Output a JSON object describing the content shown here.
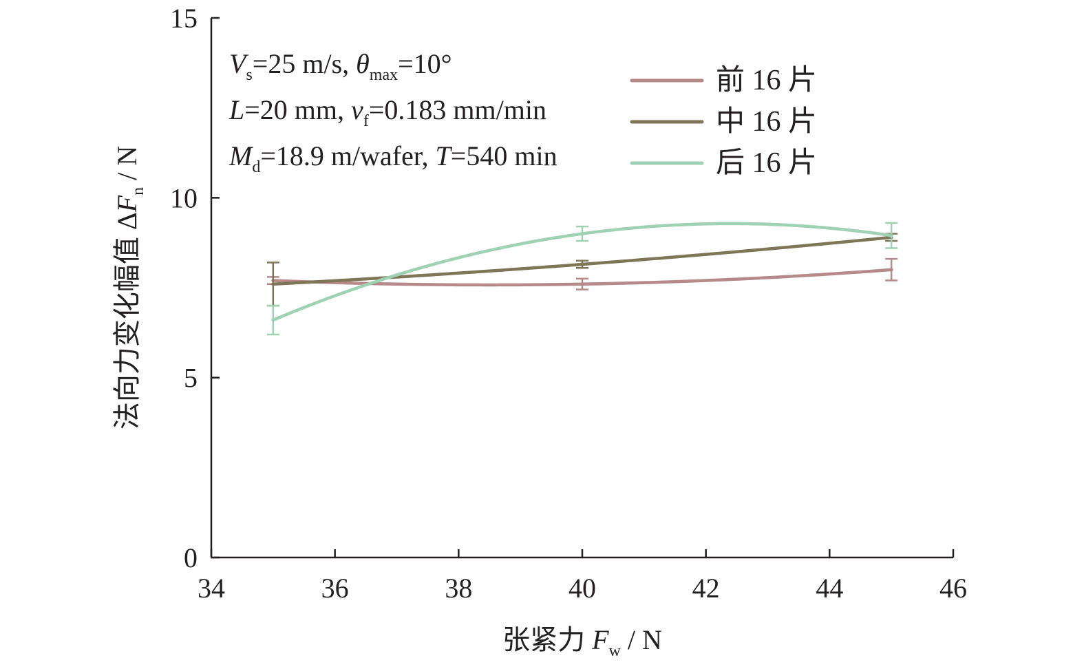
{
  "chart_data": {
    "type": "line",
    "x": [
      35,
      40,
      45
    ],
    "series": [
      {
        "name": "前 16 片",
        "color": "#b58a88",
        "values": [
          7.7,
          7.6,
          8.0
        ],
        "errors": [
          0.1,
          0.15,
          0.3
        ]
      },
      {
        "name": "中 16 片",
        "color": "#7f7557",
        "values": [
          7.6,
          8.15,
          8.9
        ],
        "errors": [
          0.6,
          0.1,
          0.1
        ]
      },
      {
        "name": "后 16 片",
        "color": "#9fd2b4",
        "values": [
          6.6,
          9.0,
          8.95
        ],
        "errors": [
          0.4,
          0.2,
          0.35
        ]
      }
    ],
    "xlim": [
      34,
      46
    ],
    "ylim": [
      0,
      15
    ],
    "xticks": [
      "34",
      "36",
      "38",
      "40",
      "42",
      "44",
      "46"
    ],
    "yticks": [
      "0",
      "5",
      "10",
      "15"
    ],
    "xlabel": {
      "main": "张紧力 ",
      "var": "F",
      "sub": "w",
      "unit": " / N"
    },
    "ylabel": {
      "main": "法向力变化幅值 Δ",
      "var": "F",
      "sub": "n",
      "unit": " / N"
    },
    "annotations": {
      "line1": {
        "v1": "V",
        "s1": "s",
        "t1": "=25 m/s, ",
        "v2": "θ",
        "s2": "max",
        "t2": "=10°"
      },
      "line2": {
        "v1": "L",
        "t1": "=20 mm, ",
        "v2": "v",
        "s2": "f",
        "t2": "=0.183 mm/min"
      },
      "line3": {
        "v1": "M",
        "s1": "d",
        "t1": "=18.9 m/wafer, ",
        "v2": "T",
        "t2": "=540 min"
      }
    },
    "legend_position": "top-right",
    "grid": false
  }
}
